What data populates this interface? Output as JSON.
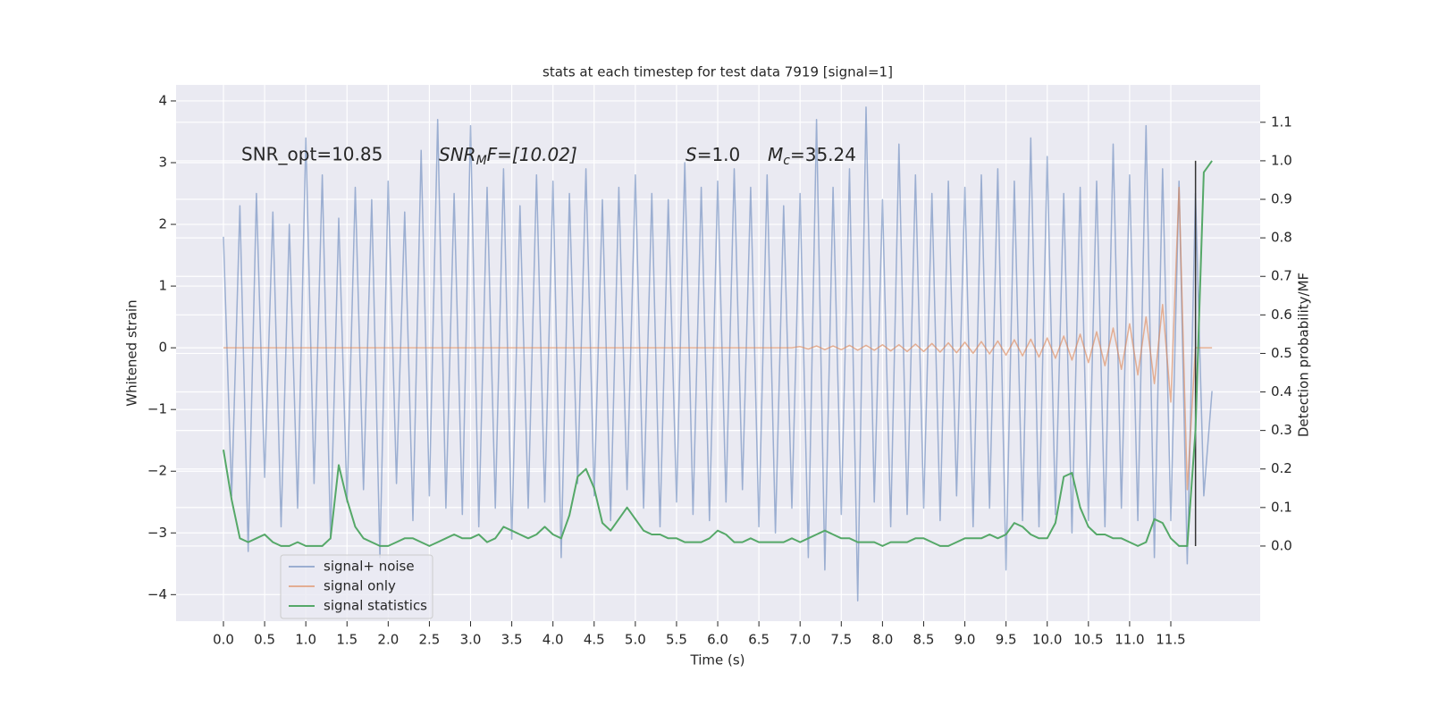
{
  "chart_data": {
    "type": "line",
    "title": "stats at each timestep for test data 7919 [signal=1]",
    "x_label": "Time (s)",
    "y_label": "Whitened strain",
    "y2_label": "Detection probability/MF",
    "annotations": [
      {
        "text": "SNR_opt=10.85"
      },
      {
        "base": "SNR",
        "sub": "M",
        "rest": "F=[10.02]"
      },
      {
        "base": "S",
        "rest": "=1.0"
      },
      {
        "base": "M",
        "sub": "c",
        "rest": "=35.24"
      }
    ],
    "grid": true,
    "legend": "lower left",
    "xlim": [
      -0.575,
      12.585
    ],
    "ylim": [
      -4.43,
      4.26
    ],
    "y2lim": [
      -0.195,
      1.197
    ],
    "xticks": [
      {
        "value": 0,
        "label": "0.0"
      },
      0.5,
      {
        "value": 1,
        "label": "1.0"
      },
      1.5,
      {
        "value": 2,
        "label": "2.0"
      },
      2.5,
      {
        "value": 3,
        "label": "3.0"
      },
      3.5,
      {
        "value": 4,
        "label": "4.0"
      },
      4.5,
      {
        "value": 5,
        "label": "5.0"
      },
      5.5,
      {
        "value": 6,
        "label": "6.0"
      },
      6.5,
      {
        "value": 7,
        "label": "7.0"
      },
      7.5,
      {
        "value": 8,
        "label": "8.0"
      },
      8.5,
      {
        "value": 9,
        "label": "9.0"
      },
      9.5,
      {
        "value": 10,
        "label": "10.0"
      },
      10.5,
      {
        "value": 11,
        "label": "11.0"
      },
      11.5
    ],
    "yticks": [
      {
        "value": -4,
        "label": "−4"
      },
      {
        "value": -3,
        "label": "−3"
      },
      {
        "value": -2,
        "label": "−2"
      },
      {
        "value": -1,
        "label": "−1"
      },
      0,
      1,
      2,
      3,
      4
    ],
    "y2ticks": [
      {
        "value": 0,
        "label": "0.0"
      },
      0.1,
      0.2,
      0.3,
      0.4,
      0.5,
      0.6,
      0.7,
      0.8,
      0.9,
      {
        "value": 1,
        "label": "1.0"
      },
      1.1
    ],
    "vline": {
      "x": 11.8,
      "y2": [
        0,
        1
      ],
      "color": "#333333"
    },
    "x": [
      0.0,
      0.1,
      0.2,
      0.3,
      0.4,
      0.5,
      0.6,
      0.7,
      0.8,
      0.9,
      1.0,
      1.1,
      1.2,
      1.3,
      1.4,
      1.5,
      1.6,
      1.7,
      1.8,
      1.9,
      2.0,
      2.1,
      2.2,
      2.3,
      2.4,
      2.5,
      2.6,
      2.7,
      2.8,
      2.9,
      3.0,
      3.1,
      3.2,
      3.3,
      3.4,
      3.5,
      3.6,
      3.7,
      3.8,
      3.9,
      4.0,
      4.1,
      4.2,
      4.3,
      4.4,
      4.5,
      4.6,
      4.7,
      4.8,
      4.9,
      5.0,
      5.1,
      5.2,
      5.3,
      5.4,
      5.5,
      5.6,
      5.7,
      5.8,
      5.9,
      6.0,
      6.1,
      6.2,
      6.3,
      6.4,
      6.5,
      6.6,
      6.7,
      6.8,
      6.9,
      7.0,
      7.1,
      7.2,
      7.3,
      7.4,
      7.5,
      7.6,
      7.7,
      7.8,
      7.9,
      8.0,
      8.1,
      8.2,
      8.3,
      8.4,
      8.5,
      8.6,
      8.7,
      8.8,
      8.9,
      9.0,
      9.1,
      9.2,
      9.3,
      9.4,
      9.5,
      9.6,
      9.7,
      9.8,
      9.9,
      10.0,
      10.1,
      10.2,
      10.3,
      10.4,
      10.5,
      10.6,
      10.7,
      10.8,
      10.9,
      11.0,
      11.1,
      11.2,
      11.3,
      11.4,
      11.5,
      11.6,
      11.7,
      11.8,
      11.9,
      12.0
    ],
    "series": [
      {
        "name": "signal+ noise",
        "color": "#4c72b0",
        "alpha": 0.5,
        "values": [
          1.8,
          -2.4,
          2.3,
          -3.3,
          2.5,
          -2.1,
          2.2,
          -2.9,
          2.0,
          -2.6,
          3.4,
          -2.2,
          2.8,
          -3.1,
          2.1,
          -2.5,
          2.6,
          -2.3,
          2.4,
          -3.4,
          2.7,
          -2.2,
          2.2,
          -2.8,
          3.2,
          -2.4,
          3.7,
          -2.6,
          2.5,
          -2.7,
          3.6,
          -2.9,
          2.6,
          -2.6,
          2.9,
          -3.1,
          2.3,
          -2.6,
          2.8,
          -2.5,
          2.7,
          -3.4,
          2.5,
          -2.2,
          2.9,
          -2.4,
          2.4,
          -2.8,
          2.6,
          -2.3,
          2.8,
          -2.6,
          2.5,
          -2.9,
          2.4,
          -2.5,
          3.0,
          -2.7,
          2.6,
          -2.8,
          2.7,
          -2.5,
          2.9,
          -2.3,
          2.6,
          -2.9,
          2.8,
          -3.0,
          2.3,
          -2.6,
          2.5,
          -3.4,
          3.7,
          -3.6,
          2.6,
          -2.7,
          2.9,
          -4.1,
          3.9,
          -2.5,
          2.4,
          -2.9,
          3.3,
          -2.7,
          2.8,
          -2.6,
          2.5,
          -2.8,
          2.7,
          -2.4,
          2.6,
          -2.9,
          2.8,
          -2.6,
          2.9,
          -3.6,
          2.7,
          -2.8,
          3.4,
          -2.9,
          3.1,
          -2.7,
          2.5,
          -3.0,
          2.6,
          -2.8,
          2.7,
          -2.9,
          3.3,
          -2.6,
          2.8,
          -2.8,
          3.6,
          -3.4,
          2.9,
          -2.8,
          2.7,
          -3.5,
          2.5,
          -2.4,
          -0.7
        ]
      },
      {
        "name": "signal only",
        "color": "#dd8452",
        "alpha": 0.6,
        "values": [
          0,
          0,
          0,
          0,
          0,
          0,
          0,
          0,
          0,
          0,
          0,
          0,
          0,
          0,
          0,
          0,
          0,
          0,
          0,
          0,
          0,
          0,
          0,
          0,
          0,
          0,
          0,
          0,
          0,
          0,
          0,
          0,
          0,
          0,
          0,
          0,
          0,
          0,
          0,
          0,
          0,
          0,
          0,
          0,
          0,
          0,
          0,
          0,
          0,
          0,
          0,
          0,
          0,
          0,
          0,
          0,
          0,
          0,
          0,
          0,
          0,
          0,
          0,
          0,
          0,
          0,
          0,
          0,
          0,
          0,
          0.02,
          -0.02,
          0.03,
          -0.03,
          0.03,
          -0.03,
          0.04,
          -0.04,
          0.04,
          -0.04,
          0.05,
          -0.05,
          0.05,
          -0.06,
          0.06,
          -0.06,
          0.07,
          -0.07,
          0.08,
          -0.08,
          0.09,
          -0.09,
          0.1,
          -0.1,
          0.11,
          -0.12,
          0.13,
          -0.13,
          0.14,
          -0.15,
          0.16,
          -0.17,
          0.19,
          -0.2,
          0.22,
          -0.24,
          0.26,
          -0.29,
          0.32,
          -0.35,
          0.39,
          -0.44,
          0.5,
          -0.58,
          0.7,
          -0.88,
          2.6,
          -2.3,
          0,
          0,
          0
        ]
      },
      {
        "name": "signal statistics",
        "color": "#55a868",
        "alpha": 1,
        "axis": "y2",
        "values": [
          0.25,
          0.12,
          0.02,
          0.01,
          0.02,
          0.03,
          0.01,
          0.0,
          0.0,
          0.01,
          0.0,
          0.0,
          0.0,
          0.02,
          0.21,
          0.12,
          0.05,
          0.02,
          0.01,
          0.0,
          0.0,
          0.01,
          0.02,
          0.02,
          0.01,
          0.0,
          0.01,
          0.02,
          0.03,
          0.02,
          0.02,
          0.03,
          0.01,
          0.02,
          0.05,
          0.04,
          0.03,
          0.02,
          0.03,
          0.05,
          0.03,
          0.02,
          0.08,
          0.18,
          0.2,
          0.15,
          0.06,
          0.04,
          0.07,
          0.1,
          0.07,
          0.04,
          0.03,
          0.03,
          0.02,
          0.02,
          0.01,
          0.01,
          0.01,
          0.02,
          0.04,
          0.03,
          0.01,
          0.01,
          0.02,
          0.01,
          0.01,
          0.01,
          0.01,
          0.02,
          0.01,
          0.02,
          0.03,
          0.04,
          0.03,
          0.02,
          0.02,
          0.01,
          0.01,
          0.01,
          0.0,
          0.01,
          0.01,
          0.01,
          0.02,
          0.02,
          0.01,
          0.0,
          0.0,
          0.01,
          0.02,
          0.02,
          0.02,
          0.03,
          0.02,
          0.03,
          0.06,
          0.05,
          0.03,
          0.02,
          0.02,
          0.06,
          0.18,
          0.19,
          0.1,
          0.05,
          0.03,
          0.03,
          0.02,
          0.02,
          0.01,
          0.0,
          0.01,
          0.07,
          0.06,
          0.02,
          0.0,
          0.0,
          0.3,
          0.97,
          1.0
        ]
      }
    ]
  }
}
